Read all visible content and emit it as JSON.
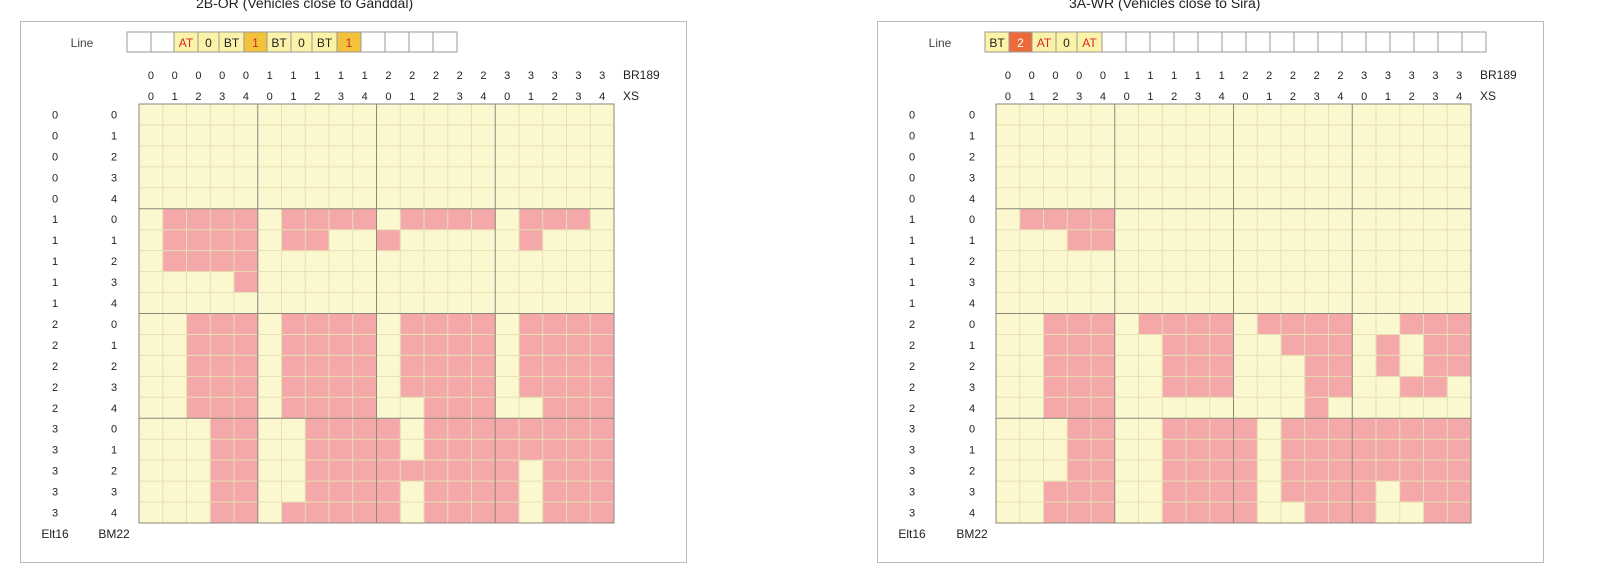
{
  "labels": {
    "line": "Line",
    "col_top": "BR189",
    "col_bottom": "XS",
    "row_left": "Elt16",
    "row_right": "BM22"
  },
  "col_top_values": [
    "0",
    "0",
    "0",
    "0",
    "0",
    "1",
    "1",
    "1",
    "1",
    "1",
    "2",
    "2",
    "2",
    "2",
    "2",
    "3",
    "3",
    "3",
    "3",
    "3"
  ],
  "col_bottom_values": [
    "0",
    "1",
    "2",
    "3",
    "4",
    "0",
    "1",
    "2",
    "3",
    "4",
    "0",
    "1",
    "2",
    "3",
    "4",
    "0",
    "1",
    "2",
    "3",
    "4"
  ],
  "row_left_values": [
    "0",
    "0",
    "0",
    "0",
    "0",
    "1",
    "1",
    "1",
    "1",
    "1",
    "2",
    "2",
    "2",
    "2",
    "2",
    "3",
    "3",
    "3",
    "3",
    "3"
  ],
  "row_right_values": [
    "0",
    "1",
    "2",
    "3",
    "4",
    "0",
    "1",
    "2",
    "3",
    "4",
    "0",
    "1",
    "2",
    "3",
    "4",
    "0",
    "1",
    "2",
    "3",
    "4"
  ],
  "colors": {
    "cell_empty": "#fbf7cf",
    "cell_fill": "#f4a8aa",
    "fine_grid": "#e6e0b2",
    "block_line": "#8a8a7a",
    "line_cell_light": "#fbf3a8",
    "line_cell_gold": "#f2c23a",
    "line_cell_orange": "#ec6a3a",
    "line_text_red": "#d8262a",
    "line_text_dark": "#222222"
  },
  "panels": [
    {
      "title": "2B-OR (Vehicles close to Ganddal)",
      "line_cells": [
        {
          "text": "",
          "style": "empty"
        },
        {
          "text": "",
          "style": "empty"
        },
        {
          "text": "AT",
          "style": "light-red"
        },
        {
          "text": "0",
          "style": "light"
        },
        {
          "text": "BT",
          "style": "light"
        },
        {
          "text": "1",
          "style": "gold"
        },
        {
          "text": "BT",
          "style": "light"
        },
        {
          "text": "0",
          "style": "light"
        },
        {
          "text": "BT",
          "style": "light"
        },
        {
          "text": "1",
          "style": "gold"
        },
        {
          "text": "",
          "style": "empty"
        },
        {
          "text": "",
          "style": "empty"
        },
        {
          "text": "",
          "style": "empty"
        },
        {
          "text": "",
          "style": "empty"
        }
      ],
      "grid": [
        "00000000000000000000",
        "00000000000000000000",
        "00000000000000000000",
        "00000000000000000000",
        "00000000000000000000",
        "01111011110111101110",
        "01111011001000001000",
        "01111000000000000000",
        "00001000000000000000",
        "00000000000000000000",
        "00111011110111101111",
        "00111011110111101111",
        "00111011110111101111",
        "00111011110111101111",
        "00111011110011100111",
        "00011001111011111111",
        "00011001111011111111",
        "00011001111111110111",
        "00011001111011110111",
        "00011011111011110111"
      ]
    },
    {
      "title": "3A-WR (Vehicles close to Sira)",
      "line_cells": [
        {
          "text": "BT",
          "style": "light"
        },
        {
          "text": "2",
          "style": "orange"
        },
        {
          "text": "AT",
          "style": "light-red"
        },
        {
          "text": "0",
          "style": "light"
        },
        {
          "text": "AT",
          "style": "light-red"
        },
        {
          "text": "",
          "style": "empty"
        },
        {
          "text": "",
          "style": "empty"
        },
        {
          "text": "",
          "style": "empty"
        },
        {
          "text": "",
          "style": "empty"
        },
        {
          "text": "",
          "style": "empty"
        },
        {
          "text": "",
          "style": "empty"
        },
        {
          "text": "",
          "style": "empty"
        },
        {
          "text": "",
          "style": "empty"
        },
        {
          "text": "",
          "style": "empty"
        },
        {
          "text": "",
          "style": "empty"
        },
        {
          "text": "",
          "style": "empty"
        },
        {
          "text": "",
          "style": "empty"
        },
        {
          "text": "",
          "style": "empty"
        },
        {
          "text": "",
          "style": "empty"
        },
        {
          "text": "",
          "style": "empty"
        },
        {
          "text": "",
          "style": "empty"
        }
      ],
      "grid": [
        "00000000000000000000",
        "00000000000000000000",
        "00000000000000000000",
        "00000000000000000000",
        "00000000000000000000",
        "01111000000000000000",
        "00011000000000000000",
        "00000000000000000000",
        "00000000000000000000",
        "00000000000000000000",
        "00111011110111100111",
        "00111001110011101011",
        "00111001110001101011",
        "00111001110001100110",
        "00111000000001000000",
        "00011001111011111111",
        "00011001111011111111",
        "00011001111011111111",
        "00111001111011110111",
        "00111001111001110011"
      ]
    }
  ]
}
